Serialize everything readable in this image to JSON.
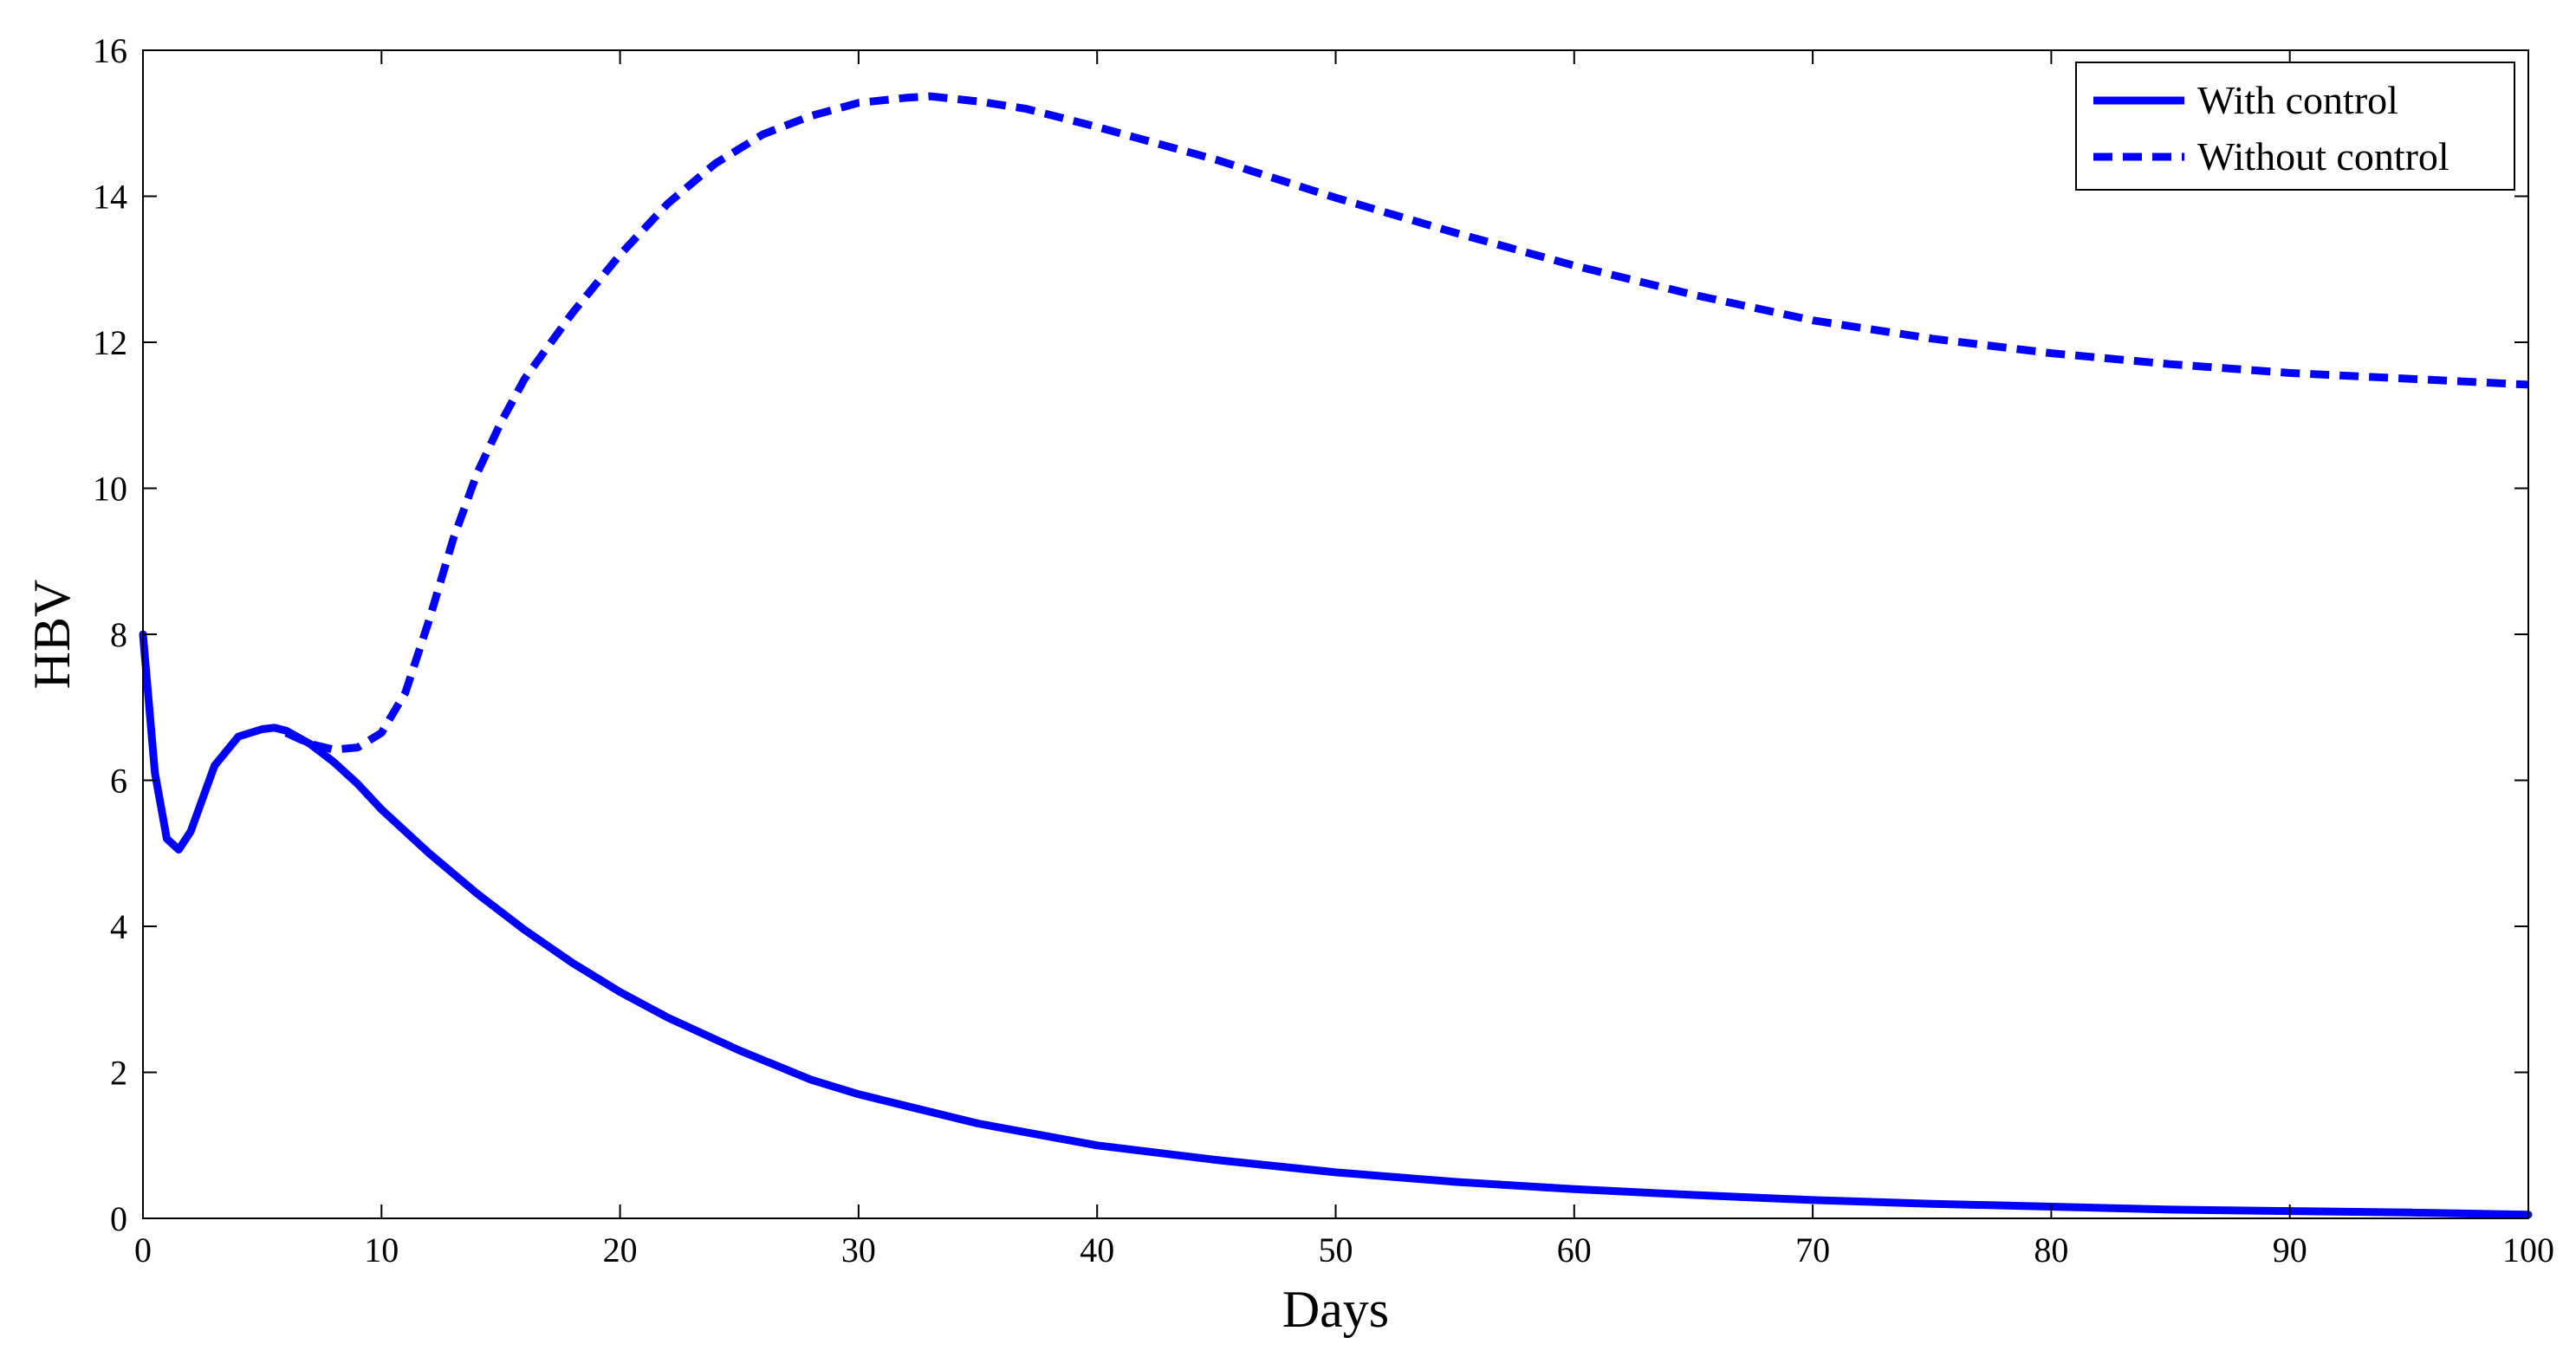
{
  "chart_data": {
    "type": "line",
    "title": "",
    "xlabel": "Days",
    "ylabel": "HBV",
    "xlim": [
      0,
      100
    ],
    "ylim": [
      0,
      16
    ],
    "xticks": [
      "0",
      "10",
      "20",
      "30",
      "40",
      "50",
      "60",
      "70",
      "80",
      "90",
      "100"
    ],
    "yticks": [
      "0",
      "2",
      "4",
      "6",
      "8",
      "10",
      "12",
      "14",
      "16"
    ],
    "grid": false,
    "legend_position": "top-right",
    "colors": {
      "series": "#0000ff",
      "axes": "#000000",
      "background": "#ffffff"
    },
    "series": [
      {
        "name": "With control",
        "style": "solid",
        "x": [
          0,
          0.5,
          1,
          1.5,
          2,
          2.5,
          3,
          4,
          5,
          5.5,
          6,
          7,
          8,
          9,
          10,
          12,
          14,
          16,
          18,
          20,
          22,
          25,
          28,
          30,
          35,
          40,
          45,
          50,
          55,
          60,
          65,
          70,
          75,
          80,
          85,
          90,
          95,
          100
        ],
        "y": [
          8.0,
          6.1,
          5.2,
          5.05,
          5.3,
          5.75,
          6.2,
          6.6,
          6.7,
          6.72,
          6.68,
          6.5,
          6.25,
          5.95,
          5.6,
          5.0,
          4.45,
          3.95,
          3.5,
          3.1,
          2.75,
          2.3,
          1.9,
          1.7,
          1.3,
          1.0,
          0.8,
          0.63,
          0.5,
          0.4,
          0.32,
          0.25,
          0.2,
          0.16,
          0.12,
          0.1,
          0.08,
          0.05
        ]
      },
      {
        "name": "Without control",
        "style": "dashed",
        "x": [
          6,
          7,
          8,
          9,
          10,
          11,
          12,
          13,
          14,
          15,
          16,
          18,
          20,
          22,
          24,
          26,
          28,
          30,
          32,
          33,
          35,
          37,
          40,
          45,
          50,
          55,
          60,
          65,
          70,
          75,
          80,
          85,
          90,
          95,
          100
        ],
        "y": [
          6.65,
          6.5,
          6.42,
          6.45,
          6.65,
          7.2,
          8.2,
          9.3,
          10.2,
          10.9,
          11.5,
          12.4,
          13.2,
          13.9,
          14.45,
          14.85,
          15.1,
          15.28,
          15.35,
          15.37,
          15.3,
          15.2,
          14.95,
          14.5,
          13.98,
          13.5,
          13.05,
          12.65,
          12.3,
          12.05,
          11.85,
          11.7,
          11.58,
          11.5,
          11.42
        ]
      }
    ]
  }
}
